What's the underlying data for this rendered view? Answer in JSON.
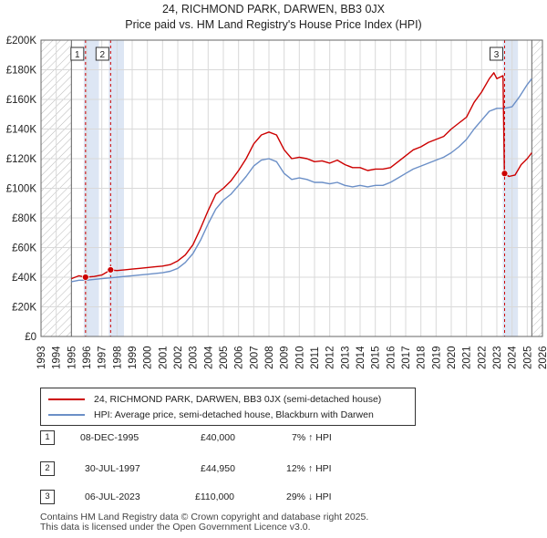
{
  "title_line1": "24, RICHMOND PARK, DARWEN, BB3 0JX",
  "title_line2": "Price paid vs. HM Land Registry's House Price Index (HPI)",
  "colors": {
    "property": "#cc0000",
    "hpi": "#6b8fc7",
    "highlight": "#dde6f4",
    "hatch": "#b8b8b8",
    "grid": "#d9d9d9",
    "marker_line": "#cc0000"
  },
  "chart_data": {
    "type": "line",
    "title": "24, RICHMOND PARK, DARWEN, BB3 0JX — Price paid vs. HM Land Registry's House Price Index (HPI)",
    "xlabel": "",
    "ylabel": "",
    "xlim": [
      1993,
      2026
    ],
    "ylim": [
      0,
      200000
    ],
    "grid": true,
    "x_ticks": [
      1993,
      1994,
      1995,
      1996,
      1997,
      1998,
      1999,
      2000,
      2001,
      2002,
      2003,
      2004,
      2005,
      2006,
      2007,
      2008,
      2009,
      2010,
      2011,
      2012,
      2013,
      2014,
      2015,
      2016,
      2017,
      2018,
      2019,
      2020,
      2021,
      2022,
      2023,
      2024,
      2025,
      2026
    ],
    "y_ticks": [
      0,
      20000,
      40000,
      60000,
      80000,
      100000,
      120000,
      140000,
      160000,
      180000,
      200000
    ],
    "y_tick_labels": [
      "£0",
      "£20K",
      "£40K",
      "£60K",
      "£80K",
      "£100K",
      "£120K",
      "£140K",
      "£160K",
      "£180K",
      "£200K"
    ],
    "data_range": [
      1995.0,
      2025.3
    ],
    "sales": [
      {
        "id": "1",
        "x": 1995.93,
        "price": 40000
      },
      {
        "id": "2",
        "x": 1997.58,
        "price": 44950
      },
      {
        "id": "3",
        "x": 2023.51,
        "price": 110000
      }
    ],
    "series": [
      {
        "name": "24, RICHMOND PARK, DARWEN, BB3 0JX (semi-detached house)",
        "points": [
          [
            1995.0,
            39000
          ],
          [
            1995.5,
            41000
          ],
          [
            1995.93,
            40000
          ],
          [
            1996.5,
            40500
          ],
          [
            1997.0,
            41500
          ],
          [
            1997.58,
            44950
          ],
          [
            1998.0,
            44500
          ],
          [
            1998.5,
            45000
          ],
          [
            1999.0,
            45500
          ],
          [
            1999.5,
            46000
          ],
          [
            2000.0,
            46500
          ],
          [
            2000.5,
            47000
          ],
          [
            2001.0,
            47500
          ],
          [
            2001.5,
            48500
          ],
          [
            2002.0,
            51000
          ],
          [
            2002.5,
            55000
          ],
          [
            2003.0,
            62000
          ],
          [
            2003.5,
            73000
          ],
          [
            2004.0,
            85000
          ],
          [
            2004.5,
            96000
          ],
          [
            2005.0,
            100000
          ],
          [
            2005.5,
            105000
          ],
          [
            2006.0,
            112000
          ],
          [
            2006.5,
            120000
          ],
          [
            2007.0,
            130000
          ],
          [
            2007.5,
            136000
          ],
          [
            2008.0,
            138000
          ],
          [
            2008.5,
            136000
          ],
          [
            2009.0,
            126000
          ],
          [
            2009.5,
            120000
          ],
          [
            2010.0,
            121000
          ],
          [
            2010.5,
            120000
          ],
          [
            2011.0,
            118000
          ],
          [
            2011.5,
            118500
          ],
          [
            2012.0,
            117000
          ],
          [
            2012.5,
            119000
          ],
          [
            2013.0,
            116000
          ],
          [
            2013.5,
            114000
          ],
          [
            2014.0,
            114000
          ],
          [
            2014.5,
            112000
          ],
          [
            2015.0,
            113000
          ],
          [
            2015.5,
            113000
          ],
          [
            2016.0,
            114000
          ],
          [
            2016.5,
            118000
          ],
          [
            2017.0,
            122000
          ],
          [
            2017.5,
            126000
          ],
          [
            2018.0,
            128000
          ],
          [
            2018.5,
            131000
          ],
          [
            2019.0,
            133000
          ],
          [
            2019.5,
            135000
          ],
          [
            2020.0,
            140000
          ],
          [
            2020.5,
            144000
          ],
          [
            2021.0,
            148000
          ],
          [
            2021.5,
            158000
          ],
          [
            2022.0,
            165000
          ],
          [
            2022.5,
            174000
          ],
          [
            2022.8,
            178000
          ],
          [
            2023.0,
            174000
          ],
          [
            2023.4,
            176000
          ],
          [
            2023.5,
            110000
          ],
          [
            2023.8,
            108000
          ],
          [
            2024.2,
            109000
          ],
          [
            2024.6,
            116000
          ],
          [
            2025.0,
            120000
          ],
          [
            2025.3,
            124000
          ]
        ]
      },
      {
        "name": "HPI: Average price, semi-detached house, Blackburn with Darwen",
        "points": [
          [
            1995.0,
            37000
          ],
          [
            1995.5,
            38000
          ],
          [
            1996.0,
            38000
          ],
          [
            1996.5,
            38500
          ],
          [
            1997.0,
            39000
          ],
          [
            1997.5,
            39500
          ],
          [
            1998.0,
            40000
          ],
          [
            1998.5,
            40500
          ],
          [
            1999.0,
            41000
          ],
          [
            1999.5,
            41500
          ],
          [
            2000.0,
            42000
          ],
          [
            2000.5,
            42500
          ],
          [
            2001.0,
            43000
          ],
          [
            2001.5,
            44000
          ],
          [
            2002.0,
            46000
          ],
          [
            2002.5,
            50000
          ],
          [
            2003.0,
            56000
          ],
          [
            2003.5,
            65000
          ],
          [
            2004.0,
            76000
          ],
          [
            2004.5,
            86000
          ],
          [
            2005.0,
            92000
          ],
          [
            2005.5,
            96000
          ],
          [
            2006.0,
            102000
          ],
          [
            2006.5,
            108000
          ],
          [
            2007.0,
            115000
          ],
          [
            2007.5,
            119000
          ],
          [
            2008.0,
            120000
          ],
          [
            2008.5,
            118000
          ],
          [
            2009.0,
            110000
          ],
          [
            2009.5,
            106000
          ],
          [
            2010.0,
            107000
          ],
          [
            2010.5,
            106000
          ],
          [
            2011.0,
            104000
          ],
          [
            2011.5,
            104000
          ],
          [
            2012.0,
            103000
          ],
          [
            2012.5,
            104000
          ],
          [
            2013.0,
            102000
          ],
          [
            2013.5,
            101000
          ],
          [
            2014.0,
            102000
          ],
          [
            2014.5,
            101000
          ],
          [
            2015.0,
            102000
          ],
          [
            2015.5,
            102000
          ],
          [
            2016.0,
            104000
          ],
          [
            2016.5,
            107000
          ],
          [
            2017.0,
            110000
          ],
          [
            2017.5,
            113000
          ],
          [
            2018.0,
            115000
          ],
          [
            2018.5,
            117000
          ],
          [
            2019.0,
            119000
          ],
          [
            2019.5,
            121000
          ],
          [
            2020.0,
            124000
          ],
          [
            2020.5,
            128000
          ],
          [
            2021.0,
            133000
          ],
          [
            2021.5,
            140000
          ],
          [
            2022.0,
            146000
          ],
          [
            2022.5,
            152000
          ],
          [
            2023.0,
            154000
          ],
          [
            2023.5,
            154000
          ],
          [
            2024.0,
            155000
          ],
          [
            2024.5,
            162000
          ],
          [
            2025.0,
            170000
          ],
          [
            2025.3,
            174000
          ]
        ]
      }
    ]
  },
  "legend": {
    "property_label": "24, RICHMOND PARK, DARWEN, BB3 0JX (semi-detached house)",
    "hpi_label": "HPI: Average price, semi-detached house, Blackburn with Darwen"
  },
  "transactions": [
    {
      "id": "1",
      "date": "08-DEC-1995",
      "price": "£40,000",
      "hpi": "7% ↑ HPI"
    },
    {
      "id": "2",
      "date": "30-JUL-1997",
      "price": "£44,950",
      "hpi": "12% ↑ HPI"
    },
    {
      "id": "3",
      "date": "06-JUL-2023",
      "price": "£110,000",
      "hpi": "29% ↓ HPI"
    }
  ],
  "footer_line1": "Contains HM Land Registry data © Crown copyright and database right 2025.",
  "footer_line2": "This data is licensed under the Open Government Licence v3.0."
}
